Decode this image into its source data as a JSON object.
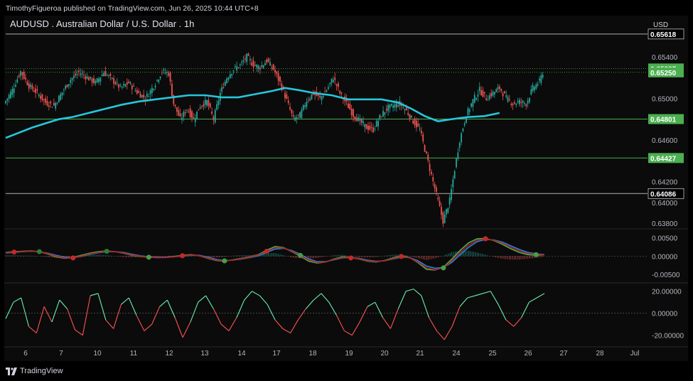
{
  "header": {
    "published_text": "TimothyFigueroa published on TradingView.com, Jun 26, 2025 10:44 UTC+8"
  },
  "footer": {
    "brand_text": "TradingView"
  },
  "chart_data": [
    {
      "type": "candlestick",
      "title": "AUDUSD . Australian Dollar / U.S. Dollar . 1h",
      "currency_label": "USD",
      "ylim": [
        0.6376,
        0.6574
      ],
      "y_ticks": [
        "0.65400",
        "0.65000",
        "0.64600",
        "0.64200",
        "0.64000",
        "0.63800"
      ],
      "y_tick_values": [
        0.654,
        0.65,
        0.646,
        0.642,
        0.64,
        0.638
      ],
      "x_ticks": [
        "6",
        "7",
        "10",
        "11",
        "12",
        "13",
        "14",
        "17",
        "18",
        "19",
        "20",
        "21",
        "24",
        "25",
        "26",
        "27",
        "28",
        "Jul"
      ],
      "horizontal_levels": [
        {
          "value": 0.65618,
          "label": "0.65618",
          "style": "black",
          "color": "#000000"
        },
        {
          "value": 0.64801,
          "label": "0.64801",
          "style": "green",
          "color": "#4caf50"
        },
        {
          "value": 0.64427,
          "label": "0.64427",
          "style": "green",
          "color": "#4caf50"
        },
        {
          "value": 0.64086,
          "label": "0.64086",
          "style": "black",
          "color": "#000000"
        }
      ],
      "price_badges": [
        {
          "value": 0.65287,
          "label": "0.65287",
          "color": "#4caf50"
        },
        {
          "value": 0.6525,
          "label": "0.65250",
          "color": "#4caf50"
        }
      ],
      "moving_average": {
        "color": "#26c6da",
        "points": [
          [
            0,
            0.6462
          ],
          [
            8,
            0.6467
          ],
          [
            16,
            0.6472
          ],
          [
            24,
            0.6476
          ],
          [
            32,
            0.648
          ],
          [
            40,
            0.6482
          ],
          [
            50,
            0.6486
          ],
          [
            60,
            0.649
          ],
          [
            70,
            0.6494
          ],
          [
            80,
            0.6497
          ],
          [
            90,
            0.6499
          ],
          [
            100,
            0.6501
          ],
          [
            110,
            0.6503
          ],
          [
            120,
            0.6503
          ],
          [
            130,
            0.6501
          ],
          [
            140,
            0.6501
          ],
          [
            150,
            0.6504
          ],
          [
            160,
            0.6507
          ],
          [
            168,
            0.651
          ],
          [
            176,
            0.6508
          ],
          [
            186,
            0.6505
          ],
          [
            196,
            0.6503
          ],
          [
            206,
            0.6499
          ],
          [
            216,
            0.6499
          ],
          [
            226,
            0.6499
          ],
          [
            236,
            0.6496
          ],
          [
            244,
            0.649
          ],
          [
            252,
            0.6483
          ],
          [
            260,
            0.6478
          ],
          [
            268,
            0.648
          ],
          [
            278,
            0.6482
          ],
          [
            288,
            0.6483
          ],
          [
            297,
            0.6486
          ]
        ]
      },
      "candle_color_up": "#26a69a",
      "candle_color_down": "#ef5350",
      "close_path": [
        [
          0,
          0.6495
        ],
        [
          5,
          0.6508
        ],
        [
          10,
          0.6526
        ],
        [
          15,
          0.6512
        ],
        [
          20,
          0.6505
        ],
        [
          25,
          0.6496
        ],
        [
          30,
          0.6493
        ],
        [
          35,
          0.6506
        ],
        [
          40,
          0.6518
        ],
        [
          45,
          0.6525
        ],
        [
          50,
          0.652
        ],
        [
          55,
          0.6515
        ],
        [
          60,
          0.6525
        ],
        [
          65,
          0.6518
        ],
        [
          70,
          0.651
        ],
        [
          75,
          0.6515
        ],
        [
          80,
          0.6506
        ],
        [
          85,
          0.65
        ],
        [
          90,
          0.6512
        ],
        [
          95,
          0.6526
        ],
        [
          99,
          0.6524
        ],
        [
          102,
          0.6495
        ],
        [
          106,
          0.648
        ],
        [
          110,
          0.649
        ],
        [
          114,
          0.648
        ],
        [
          118,
          0.6493
        ],
        [
          122,
          0.6497
        ],
        [
          126,
          0.648
        ],
        [
          130,
          0.6505
        ],
        [
          134,
          0.652
        ],
        [
          138,
          0.6528
        ],
        [
          142,
          0.6532
        ],
        [
          146,
          0.654
        ],
        [
          150,
          0.6532
        ],
        [
          154,
          0.653
        ],
        [
          158,
          0.6536
        ],
        [
          162,
          0.6528
        ],
        [
          166,
          0.6515
        ],
        [
          170,
          0.6498
        ],
        [
          174,
          0.648
        ],
        [
          178,
          0.6484
        ],
        [
          182,
          0.6498
        ],
        [
          186,
          0.6505
        ],
        [
          190,
          0.65
        ],
        [
          194,
          0.6508
        ],
        [
          198,
          0.652
        ],
        [
          202,
          0.6505
        ],
        [
          206,
          0.6495
        ],
        [
          210,
          0.6484
        ],
        [
          214,
          0.6478
        ],
        [
          218,
          0.6472
        ],
        [
          222,
          0.647
        ],
        [
          226,
          0.6482
        ],
        [
          230,
          0.649
        ],
        [
          234,
          0.6493
        ],
        [
          238,
          0.6495
        ],
        [
          242,
          0.6488
        ],
        [
          246,
          0.6478
        ],
        [
          250,
          0.647
        ],
        [
          254,
          0.6445
        ],
        [
          258,
          0.642
        ],
        [
          262,
          0.6395
        ],
        [
          264,
          0.6382
        ],
        [
          268,
          0.6402
        ],
        [
          271,
          0.6432
        ],
        [
          274,
          0.646
        ],
        [
          278,
          0.6484
        ],
        [
          282,
          0.6498
        ],
        [
          286,
          0.6508
        ],
        [
          290,
          0.65
        ],
        [
          294,
          0.6505
        ],
        [
          298,
          0.651
        ],
        [
          302,
          0.65
        ],
        [
          306,
          0.6495
        ],
        [
          310,
          0.6497
        ],
        [
          314,
          0.6495
        ],
        [
          318,
          0.651
        ],
        [
          322,
          0.6516
        ],
        [
          324,
          0.6525
        ]
      ]
    },
    {
      "type": "line",
      "name": "oscillator-1",
      "ylim": [
        -0.0065,
        0.0068
      ],
      "y_ticks": [
        "0.00500",
        "0.00000",
        "-0.00500"
      ],
      "y_tick_values": [
        0.005,
        0,
        -0.005
      ],
      "series": [
        {
          "name": "fast",
          "color": "#4caf50",
          "values": [
            0.001,
            0.0012,
            0.0013,
            0.0014,
            0.0012,
            0.0006,
            -0.0002,
            -0.0006,
            -0.0004,
            0.0002,
            0.0008,
            0.0012,
            0.0014,
            0.0012,
            0.0008,
            0.0002,
            -0.0001,
            -0.0003,
            -0.0004,
            -0.0003,
            -0.0001,
            0.0002,
            0.0004,
            0.0001,
            -0.0006,
            -0.0012,
            -0.0014,
            -0.001,
            -0.0006,
            -0.0002,
            0.0004,
            0.0016,
            0.0026,
            0.0023,
            0.0012,
            0.0,
            -0.0014,
            -0.0019,
            -0.0016,
            -0.0008,
            -0.0002,
            -0.0004,
            -0.0008,
            -0.0014,
            -0.0016,
            -0.0012,
            -0.0005,
            0.0001,
            -0.0004,
            -0.0018,
            -0.0036,
            -0.0038,
            -0.003,
            -0.0008,
            0.0016,
            0.0036,
            0.0047,
            0.0048,
            0.0042,
            0.0032,
            0.002,
            0.001,
            0.0004,
            0.0002,
            0.0003
          ]
        },
        {
          "name": "slow",
          "color": "#1e88e5",
          "values": [
            0.0008,
            0.001,
            0.0012,
            0.0013,
            0.0012,
            0.0008,
            0.0002,
            -0.0003,
            -0.0004,
            -0.0001,
            0.0005,
            0.0009,
            0.0012,
            0.0012,
            0.001,
            0.0005,
            0.0001,
            -0.0002,
            -0.0003,
            -0.0003,
            -0.0002,
            0.0,
            0.0002,
            0.0002,
            -0.0003,
            -0.0009,
            -0.0012,
            -0.0011,
            -0.0008,
            -0.0004,
            0.0001,
            0.001,
            0.0019,
            0.0021,
            0.0015,
            0.0005,
            -0.0008,
            -0.0015,
            -0.0015,
            -0.001,
            -0.0005,
            -0.0004,
            -0.0006,
            -0.0011,
            -0.0014,
            -0.0013,
            -0.0008,
            -0.0003,
            -0.0004,
            -0.0013,
            -0.0027,
            -0.0033,
            -0.0031,
            -0.0017,
            0.0004,
            0.0024,
            0.0039,
            0.0045,
            0.0044,
            0.0038,
            0.0028,
            0.0018,
            0.001,
            0.0006,
            0.0004
          ]
        },
        {
          "name": "signal",
          "color": "#b71c1c",
          "values": [
            0.0009,
            0.0011,
            0.0012,
            0.0013,
            0.0012,
            0.0007,
            0.0,
            -0.0005,
            -0.0005,
            0.0,
            0.0006,
            0.001,
            0.0013,
            0.0012,
            0.0009,
            0.0003,
            0.0,
            -0.0003,
            -0.0004,
            -0.0004,
            -0.0002,
            0.0001,
            0.0003,
            0.0001,
            -0.0005,
            -0.0011,
            -0.0013,
            -0.0011,
            -0.0007,
            -0.0003,
            0.0003,
            0.0013,
            0.0023,
            0.0022,
            0.0013,
            0.0002,
            -0.0011,
            -0.0017,
            -0.0016,
            -0.0009,
            -0.0004,
            -0.0005,
            -0.0007,
            -0.0013,
            -0.0015,
            -0.0013,
            -0.0007,
            -0.0001,
            -0.0005,
            -0.0016,
            -0.0032,
            -0.0037,
            -0.0032,
            -0.0013,
            0.001,
            0.003,
            0.0043,
            0.0047,
            0.0043,
            0.0035,
            0.0024,
            0.0014,
            0.0007,
            0.0004,
            0.0003
          ]
        }
      ],
      "markers": [
        {
          "index": 1,
          "color": "#c62828"
        },
        {
          "index": 4,
          "color": "#2e7d32"
        },
        {
          "index": 8,
          "color": "#c62828"
        },
        {
          "index": 12,
          "color": "#2e7d32"
        },
        {
          "index": 17,
          "color": "#43a047"
        },
        {
          "index": 21,
          "color": "#c62828"
        },
        {
          "index": 26,
          "color": "#43a047"
        },
        {
          "index": 31,
          "color": "#c62828"
        },
        {
          "index": 35,
          "color": "#43a047"
        },
        {
          "index": 41,
          "color": "#c62828"
        },
        {
          "index": 47,
          "color": "#c62828"
        },
        {
          "index": 52,
          "color": "#43a047"
        },
        {
          "index": 57,
          "color": "#c62828"
        },
        {
          "index": 63,
          "color": "#43a047"
        }
      ]
    },
    {
      "type": "line",
      "name": "oscillator-2",
      "ylim": [
        -28,
        25
      ],
      "y_ticks": [
        "20.00000",
        "0.00000",
        "-20.00000"
      ],
      "y_tick_values": [
        20,
        0,
        -20
      ],
      "series": [
        {
          "name": "momentum",
          "values": [
            -5,
            10,
            14,
            -12,
            -18,
            6,
            -8,
            12,
            4,
            -15,
            -20,
            16,
            18,
            -6,
            -14,
            8,
            14,
            -2,
            -16,
            -10,
            6,
            12,
            -4,
            -22,
            -8,
            10,
            16,
            4,
            -10,
            -16,
            -4,
            12,
            20,
            16,
            8,
            -6,
            -14,
            -18,
            -6,
            4,
            12,
            18,
            10,
            -2,
            -16,
            -20,
            -8,
            6,
            10,
            -4,
            -14,
            4,
            20,
            22,
            16,
            -4,
            -16,
            -24,
            -12,
            6,
            14,
            16,
            18,
            20,
            8,
            -6,
            -12,
            -4,
            10,
            14,
            18
          ]
        }
      ]
    }
  ]
}
